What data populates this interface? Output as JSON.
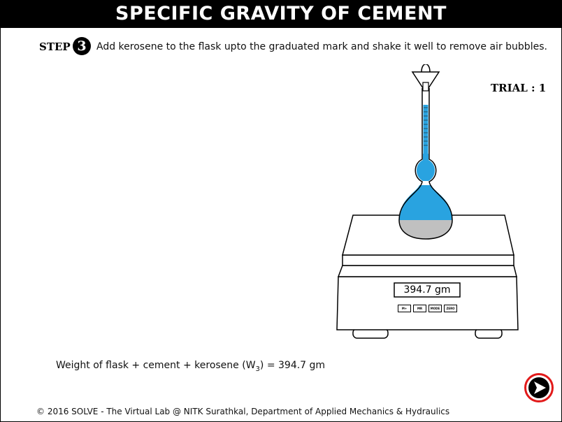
{
  "header": {
    "title": "SPECIFIC GRAVITY OF CEMENT"
  },
  "step": {
    "label": "STEP",
    "number": "3",
    "instruction": "Add kerosene to the flask upto the graduated mark and shake it well to remove air bubbles."
  },
  "trial": {
    "label": "TRIAL : 1"
  },
  "scale": {
    "display": "394.7 gm",
    "buttons": [
      "M+",
      "MR",
      "MODE",
      "ZERO"
    ]
  },
  "result": {
    "prefix": "Weight of flask + cement + kerosene (W",
    "subscript": "3",
    "suffix": ") = 394.7 gm"
  },
  "footer": {
    "text": "© 2016 SOLVE - The Virtual Lab @ NITK Surathkal, Department of Applied Mechanics & Hydraulics"
  },
  "colors": {
    "liquid": "#29a3e0",
    "cement": "#c0c0c0",
    "next_ring": "#e21a1a"
  },
  "icons": {
    "next": "arrow-right-circle-icon"
  }
}
